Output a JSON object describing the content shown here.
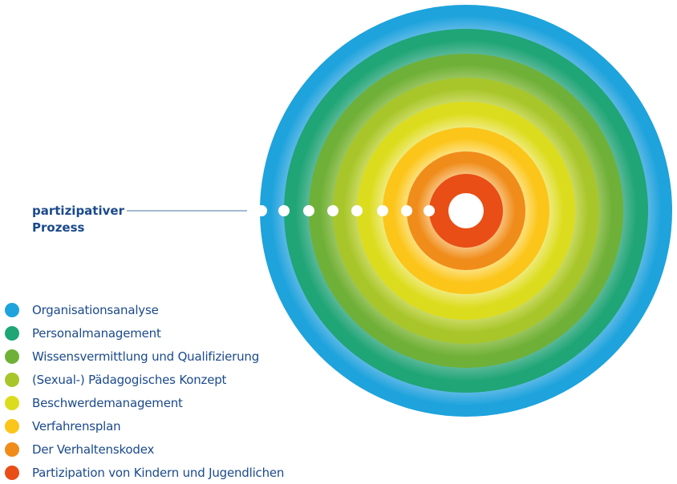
{
  "process_label": {
    "line1": "partizipativer",
    "line2": "Prozess"
  },
  "center_color": "#ffffff",
  "line_color": "#6d8fb3",
  "legend": [
    {
      "label": "Organisationsanalyse",
      "color": "#1ea3dc",
      "light": "#5ab8e6"
    },
    {
      "label": "Personalmanagement",
      "color": "#1fa576",
      "light": "#58b898"
    },
    {
      "label": "Wissensvermittlung und Qualifizierung",
      "color": "#6fb038",
      "light": "#98c45e"
    },
    {
      "label": "(Sexual-) Pädagogisches Konzept",
      "color": "#a8c62a",
      "light": "#c9d960"
    },
    {
      "label": "Beschwerdemanagement",
      "color": "#dcdc1e",
      "light": "#eeea78"
    },
    {
      "label": "Verfahrensplan",
      "color": "#fbc51a",
      "light": "#fde07a"
    },
    {
      "label": "Der Verhaltenskodex",
      "color": "#f08c1a",
      "light": "#f8c078"
    },
    {
      "label": "Partizipation von Kindern und Jugendlichen",
      "color": "#e84e16",
      "light": "#e84e16"
    }
  ]
}
